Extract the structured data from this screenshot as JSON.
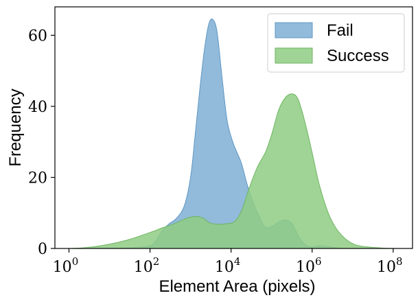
{
  "chart_data": {
    "type": "area",
    "xlabel": "Element Area (pixels)",
    "ylabel": "Frequency",
    "x_scale": "log10",
    "xlim": [
      0.45,
      300000000.0
    ],
    "ylim": [
      0,
      68
    ],
    "x_ticks": [
      {
        "value": 1,
        "base": "10",
        "exp": "0"
      },
      {
        "value": 100,
        "base": "10",
        "exp": "2"
      },
      {
        "value": 10000,
        "base": "10",
        "exp": "4"
      },
      {
        "value": 1000000,
        "base": "10",
        "exp": "6"
      },
      {
        "value": 100000000,
        "base": "10",
        "exp": "8"
      }
    ],
    "y_ticks": [
      "0",
      "20",
      "40",
      "60"
    ],
    "grid": false,
    "legend_position": "top-right",
    "series": [
      {
        "name": "Fail",
        "color": "#7fafd5",
        "stroke": "#5d95c2",
        "x": [
          5.0,
          20,
          50,
          100,
          140,
          200,
          300,
          450,
          700,
          1000,
          1300,
          1700,
          2200,
          2800,
          3500,
          4500,
          6000,
          8000,
          11000,
          14000,
          18000,
          25000,
          35000,
          50000,
          70000,
          100000,
          150000,
          200000,
          260000,
          320000,
          400000,
          500000,
          700000,
          1000000,
          1500000,
          2500000,
          5000000
        ],
        "y": [
          0,
          0.1,
          0.3,
          0.8,
          2.2,
          5.0,
          7.0,
          8.5,
          12,
          20,
          32,
          45,
          56,
          63,
          64.5,
          61,
          48,
          36,
          30,
          27,
          24,
          18,
          13,
          9,
          6,
          6.2,
          7.5,
          8.0,
          7.8,
          7.0,
          5.0,
          2.8,
          1.0,
          0.4,
          0.8,
          0.6,
          0
        ]
      },
      {
        "name": "Success",
        "color": "#8fcc84",
        "stroke": "#6cb45f",
        "x": [
          1.0,
          3,
          10,
          30,
          100,
          200,
          400,
          800,
          1300,
          2000,
          3000,
          5000,
          8000,
          12000,
          18000,
          28000,
          45000,
          70000,
          100000,
          150000,
          220000,
          320000,
          450000,
          650000,
          1000000,
          1500000,
          2500000,
          4000000,
          7000000,
          12000000,
          25000000,
          60000000,
          150000000
        ],
        "y": [
          0,
          0.3,
          1.2,
          2.5,
          4.5,
          5.8,
          7.0,
          8.5,
          9.0,
          8.6,
          7.2,
          6.8,
          7.0,
          7.5,
          10.5,
          17,
          23,
          27,
          32,
          39,
          42.5,
          43.5,
          42,
          36,
          27,
          18,
          10,
          5.5,
          2.5,
          1.0,
          0.4,
          0.1,
          0
        ]
      }
    ]
  }
}
